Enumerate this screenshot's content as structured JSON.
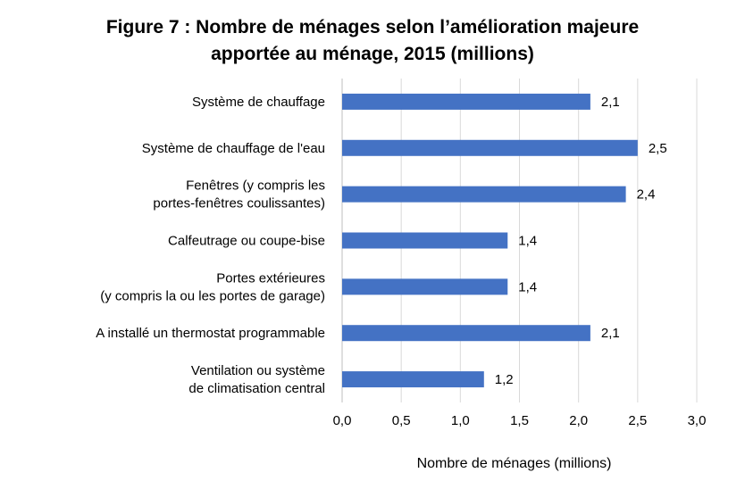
{
  "chart_data": {
    "type": "bar",
    "orientation": "horizontal",
    "title_lines": [
      "Figure 7 : Nombre de ménages selon l’amélioration  majeure",
      "apportée au ménage, 2015 (millions)"
    ],
    "categories": [
      [
        "Système de chauffage"
      ],
      [
        "Système de chauffage de l'eau"
      ],
      [
        "Fenêtres (y compris les",
        "portes-fenêtres coulissantes)"
      ],
      [
        "Calfeutrage ou coupe-bise"
      ],
      [
        "Portes extérieures",
        "(y compris la ou les portes de garage)"
      ],
      [
        "A installé un thermostat programmable"
      ],
      [
        "Ventilation ou système",
        "de climatisation central"
      ]
    ],
    "values": [
      2.1,
      2.5,
      2.4,
      1.4,
      1.4,
      2.1,
      1.2
    ],
    "data_labels": [
      "2,1",
      "2,5",
      "2,4",
      "1,4",
      "1,4",
      "2,1",
      "1,2"
    ],
    "xlabel": "Nombre de ménages (millions)",
    "xlim": [
      0,
      3
    ],
    "xticks": [
      0,
      0.5,
      1,
      1.5,
      2,
      2.5,
      3
    ],
    "xtick_labels": [
      "0,0",
      "0,5",
      "1,0",
      "1,5",
      "2,0",
      "2,5",
      "3,0"
    ],
    "grid": "vertical",
    "legend": "none",
    "colors": {
      "bar": "#4472C4",
      "grid": "#D9D9D9",
      "axis": "#BFBFBF"
    }
  }
}
